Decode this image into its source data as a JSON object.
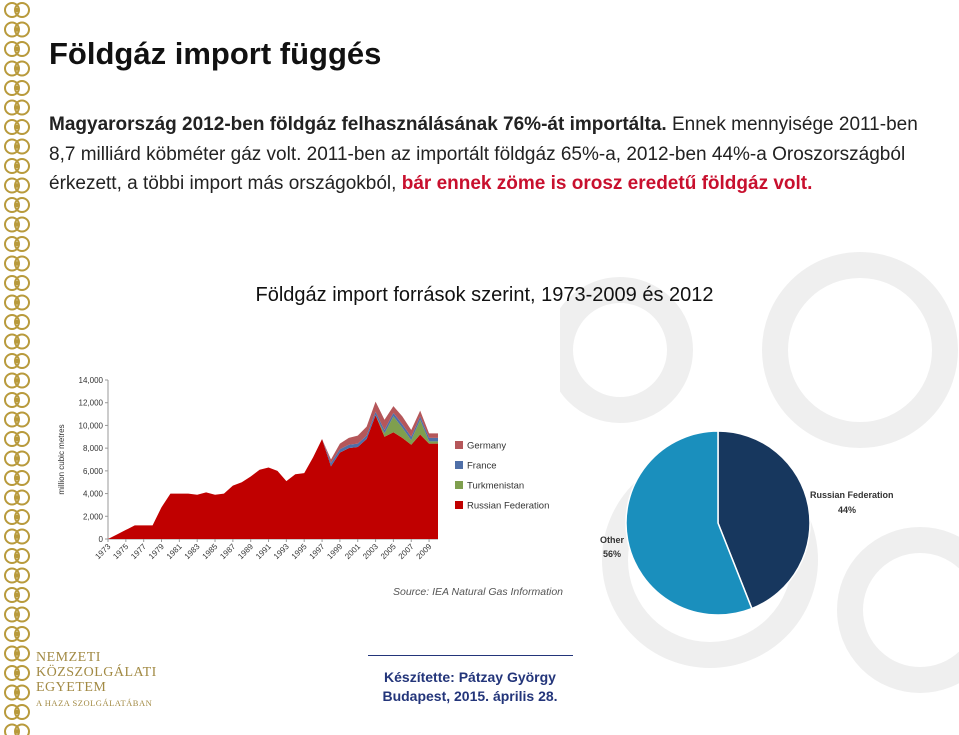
{
  "title": "Földgáz import függés",
  "paragraph": {
    "bold_lead": "Magyarország 2012-ben földgáz felhasználásának 76%-át importálta.",
    "text_mid": " Ennek mennyisége 2011-ben 8,7 milliárd köbméter gáz volt. 2011-ben az importált földgáz 65%-a, 2012-ben 44%-a Oroszországból érkezett, a többi import más országokból, ",
    "red_tail": "bár ennek zöme is orosz eredetű földgáz volt."
  },
  "subtitle": "Földgáz import források szerint, 1973-2009 és 2012",
  "chart_data": [
    {
      "type": "area",
      "stacked": true,
      "title": "",
      "xlabel": "",
      "ylabel": "million cubic metres",
      "ylim": [
        0,
        14000
      ],
      "yticks": [
        0,
        2000,
        4000,
        6000,
        8000,
        10000,
        12000,
        14000
      ],
      "ytick_labels": [
        "0",
        "2,000",
        "4,000",
        "6,000",
        "8,000",
        "10,000",
        "12,000",
        "14,000"
      ],
      "xlim": [
        1973,
        2010
      ],
      "xticks": [
        1973,
        1975,
        1977,
        1979,
        1981,
        1983,
        1985,
        1987,
        1989,
        1991,
        1993,
        1995,
        1997,
        1999,
        2001,
        2003,
        2005,
        2007,
        2009
      ],
      "x": [
        1973,
        1974,
        1975,
        1976,
        1977,
        1978,
        1979,
        1980,
        1981,
        1982,
        1983,
        1984,
        1985,
        1986,
        1987,
        1988,
        1989,
        1990,
        1991,
        1992,
        1993,
        1994,
        1995,
        1996,
        1997,
        1998,
        1999,
        2000,
        2001,
        2002,
        2003,
        2004,
        2005,
        2006,
        2007,
        2008,
        2009,
        2010
      ],
      "series": [
        {
          "name": "Russian Federation",
          "color": "#c00000",
          "values": [
            0,
            400,
            800,
            1200,
            1200,
            1200,
            2800,
            4000,
            4000,
            4000,
            3900,
            4100,
            3900,
            4000,
            4700,
            5000,
            5500,
            6100,
            6300,
            6000,
            5100,
            5700,
            5800,
            7200,
            8800,
            6400,
            7600,
            8000,
            8100,
            8800,
            10900,
            9000,
            9400,
            8900,
            8300,
            9200,
            8400,
            8400
          ]
        },
        {
          "name": "Turkmenistan",
          "color": "#7f9f4e",
          "values": [
            0,
            0,
            0,
            0,
            0,
            0,
            0,
            0,
            0,
            0,
            0,
            0,
            0,
            0,
            0,
            0,
            0,
            0,
            0,
            0,
            0,
            0,
            0,
            0,
            0,
            0,
            0,
            0,
            0,
            0,
            0,
            300,
            1400,
            900,
            400,
            1300,
            200,
            200
          ]
        },
        {
          "name": "France",
          "color": "#4f6fa8",
          "values": [
            0,
            0,
            0,
            0,
            0,
            0,
            0,
            0,
            0,
            0,
            0,
            0,
            0,
            0,
            0,
            0,
            0,
            0,
            0,
            0,
            0,
            0,
            0,
            0,
            0,
            300,
            300,
            300,
            300,
            300,
            300,
            300,
            300,
            300,
            300,
            300,
            300,
            300
          ]
        },
        {
          "name": "Germany",
          "color": "#b5575a",
          "values": [
            0,
            0,
            0,
            0,
            0,
            0,
            0,
            0,
            0,
            0,
            0,
            0,
            0,
            0,
            0,
            0,
            0,
            0,
            0,
            0,
            0,
            0,
            0,
            0,
            0,
            300,
            500,
            600,
            700,
            800,
            900,
            900,
            600,
            700,
            600,
            500,
            400,
            400
          ]
        }
      ],
      "legend_position": "right",
      "source": "Source: IEA Natural Gas Information"
    },
    {
      "type": "pie",
      "title": "",
      "slices": [
        {
          "label": "Russian Federation",
          "pct_label": "44%",
          "value": 44,
          "color": "#17375e"
        },
        {
          "label": "Other",
          "pct_label": "56%",
          "value": 56,
          "color": "#1a8fbd"
        }
      ]
    }
  ],
  "logo": {
    "line1": "NEMZETI",
    "line2": "KÖZSZOLGÁLATI",
    "line3": "EGYETEM",
    "tagline": "A HAZA SZOLGÁLATÁBAN"
  },
  "credit": {
    "line1": "Készítette: Pátzay György",
    "line2": "Budapest, 2015. április 28."
  },
  "colors": {
    "border_gold": "#b89a3c",
    "watermark": "#efefef",
    "accent_red": "#c8102e",
    "credit_blue": "#23357a"
  }
}
